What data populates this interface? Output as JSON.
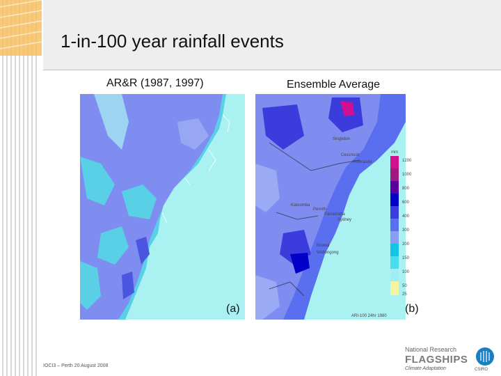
{
  "slide": {
    "title": "1-in-100 year rainfall events",
    "footer": "IOCI3 – Perth 20 August 2008"
  },
  "panel_a": {
    "heading": "AR&R (1987, 1997)",
    "letter": "(a)",
    "colors": {
      "ocean": "#aaf2f2",
      "low": "#4fd4e8",
      "mid": "#7f8df0",
      "high": "#5a66ec"
    }
  },
  "panel_b": {
    "heading": "Ensemble Average",
    "letter": "(b)",
    "places": [
      "Singleton",
      "Cessnock",
      "Newcastle",
      "Katoomba",
      "Penrith",
      "Parramatta",
      "Sydney",
      "Bowral",
      "Wollongong"
    ],
    "caption": "ARI-100 24hr 1980",
    "legend": {
      "unit": "mm",
      "values": [
        "1200",
        "1000",
        "800",
        "600",
        "400",
        "300",
        "200",
        "150",
        "100",
        "50",
        "25"
      ],
      "colors": [
        "#d01090",
        "#a01880",
        "#5a00a0",
        "#0000c8",
        "#3c3cdc",
        "#5a6ef0",
        "#8a9cf4",
        "#14c4e4",
        "#48dcec",
        "#a0eef4",
        "#f4f4a0"
      ]
    }
  },
  "logo": {
    "line1": "National Research",
    "line2": "FLAGSHIPS",
    "line3": "Climate Adaptation",
    "badge": "CSIRO"
  }
}
